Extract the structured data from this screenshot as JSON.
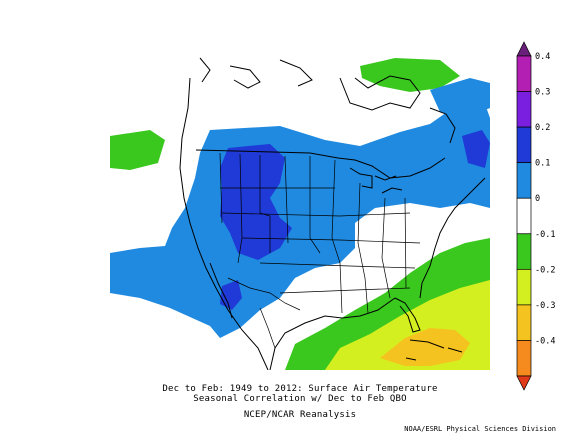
{
  "captions": {
    "line1": "Dec to Feb: 1949 to 2012: Surface Air Temperature",
    "line2": "Seasonal Correlation w/ Dec to Feb QBO",
    "line3": "NCEP/NCAR Reanalysis"
  },
  "credit": "NOAA/ESRL Physical Sciences Division",
  "colorbar": {
    "labels": [
      "0.4",
      "0.3",
      "0.2",
      "0.1",
      "0",
      "-0.1",
      "-0.2",
      "-0.3",
      "-0.4"
    ],
    "colors": [
      "#6a1f7a",
      "#b21fb2",
      "#7a1fe0",
      "#1f3ad6",
      "#1f8ae0",
      "#ffffff",
      "#3ac81f",
      "#d4ef1f",
      "#f5c31f",
      "#f58a1f",
      "#e03a1a"
    ]
  },
  "map": {
    "region": "North America",
    "variable": "Surface Air Temperature",
    "colors": {
      "strong_positive": "#1f3ad6",
      "positive": "#1f8ae0",
      "weak_negative": "#3ac81f",
      "moderate_negative": "#d4ef1f",
      "strong_negative": "#f5c31f"
    }
  }
}
